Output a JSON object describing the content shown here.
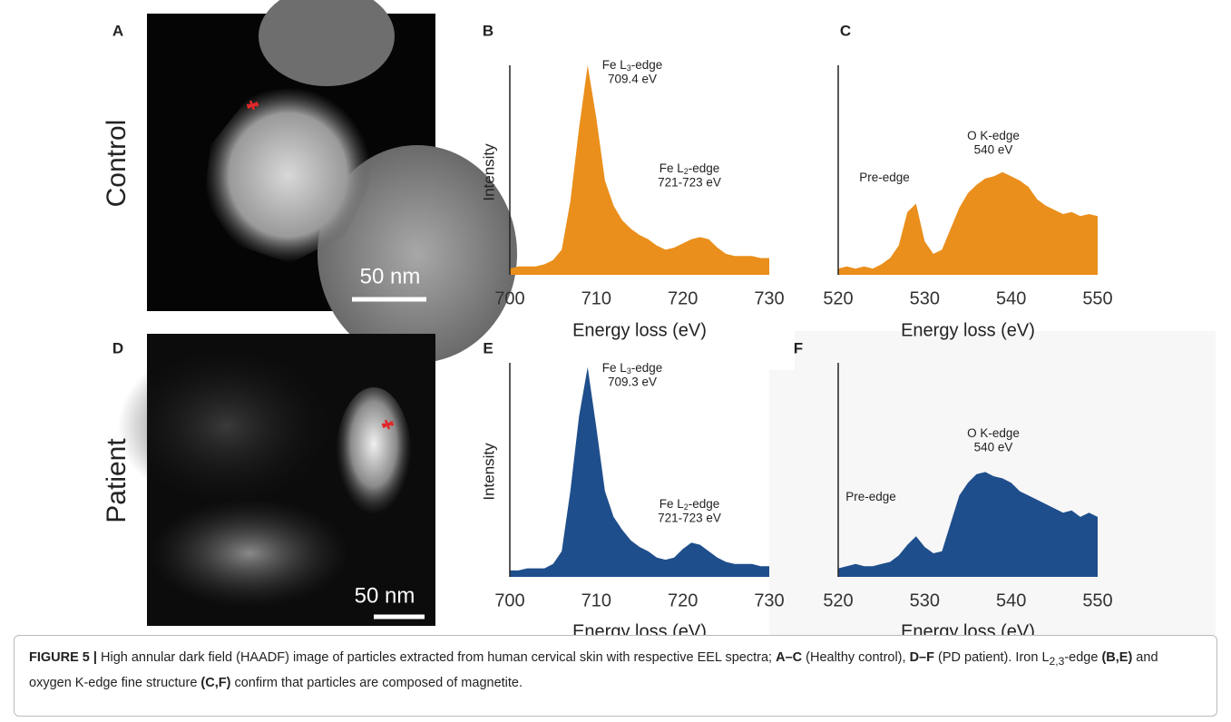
{
  "panel_labels": [
    "A",
    "B",
    "C",
    "D",
    "E",
    "F"
  ],
  "row_labels": [
    "Control",
    "Patient"
  ],
  "scale_bar": "50 nm",
  "chart_data": [
    {
      "type": "area",
      "color": "#ea8f1c",
      "x": [
        700,
        701,
        702,
        703,
        704,
        705,
        706,
        707,
        708,
        709,
        710,
        711,
        712,
        713,
        714,
        715,
        716,
        717,
        718,
        719,
        720,
        721,
        722,
        723,
        724,
        725,
        726,
        727,
        728,
        729,
        730
      ],
      "values": [
        3,
        4,
        4,
        4,
        5,
        7,
        12,
        35,
        70,
        100,
        75,
        45,
        33,
        26,
        22,
        19,
        17,
        14,
        12,
        13,
        15,
        17,
        18,
        17,
        13,
        10,
        9,
        9,
        9,
        8,
        8
      ],
      "xlim": [
        700,
        730
      ],
      "xticks": [
        700,
        710,
        720,
        730
      ],
      "ylim": [
        0,
        100
      ],
      "xlabel": "Energy loss (eV)",
      "ylabel": "Intensity",
      "annotations": [
        {
          "text": "Fe L",
          "sub": "3",
          "suffix": "-edge",
          "value": "709.4 eV"
        },
        {
          "text": "Fe L",
          "sub": "2",
          "suffix": "-edge",
          "value": "721-723 eV"
        }
      ]
    },
    {
      "type": "area",
      "color": "#ea8f1c",
      "x": [
        520,
        521,
        522,
        523,
        524,
        525,
        526,
        527,
        528,
        529,
        530,
        531,
        532,
        533,
        534,
        535,
        536,
        537,
        538,
        539,
        540,
        541,
        542,
        543,
        544,
        545,
        546,
        547,
        548,
        549,
        550
      ],
      "values": [
        3,
        4,
        3,
        4,
        3,
        5,
        8,
        14,
        30,
        34,
        16,
        10,
        12,
        22,
        32,
        39,
        43,
        46,
        47,
        49,
        47,
        45,
        42,
        36,
        33,
        31,
        29,
        30,
        28,
        29,
        28
      ],
      "xlim": [
        520,
        550
      ],
      "xticks": [
        520,
        530,
        540,
        550
      ],
      "ylim": [
        0,
        100
      ],
      "xlabel": "Energy loss (eV)",
      "annotations": [
        {
          "text": "O K-edge",
          "value": "540 eV"
        },
        {
          "text": "Pre-edge"
        }
      ]
    },
    {
      "type": "area",
      "color": "#1f4e8c",
      "x": [
        700,
        701,
        702,
        703,
        704,
        705,
        706,
        707,
        708,
        709,
        710,
        711,
        712,
        713,
        714,
        715,
        716,
        717,
        718,
        719,
        720,
        721,
        722,
        723,
        724,
        725,
        726,
        727,
        728,
        729,
        730
      ],
      "values": [
        3,
        3,
        4,
        4,
        4,
        6,
        12,
        40,
        75,
        98,
        70,
        40,
        28,
        22,
        17,
        14,
        12,
        9,
        8,
        9,
        13,
        16,
        15,
        12,
        9,
        7,
        6,
        6,
        6,
        5,
        5
      ],
      "xlim": [
        700,
        730
      ],
      "xticks": [
        700,
        710,
        720,
        730
      ],
      "ylim": [
        0,
        100
      ],
      "xlabel": "Energy loss (eV)",
      "ylabel": "Intensity",
      "annotations": [
        {
          "text": "Fe L",
          "sub": "3",
          "suffix": "-edge",
          "value": "709.3 eV"
        },
        {
          "text": "Fe L",
          "sub": "2",
          "suffix": "-edge",
          "value": "721-723 eV"
        }
      ]
    },
    {
      "type": "area",
      "color": "#1f4e8c",
      "x": [
        520,
        521,
        522,
        523,
        524,
        525,
        526,
        527,
        528,
        529,
        530,
        531,
        532,
        533,
        534,
        535,
        536,
        537,
        538,
        539,
        540,
        541,
        542,
        543,
        544,
        545,
        546,
        547,
        548,
        549,
        550
      ],
      "values": [
        4,
        5,
        6,
        5,
        5,
        6,
        7,
        10,
        15,
        19,
        14,
        11,
        12,
        25,
        38,
        44,
        48,
        49,
        47,
        46,
        44,
        40,
        38,
        36,
        34,
        32,
        30,
        31,
        28,
        30,
        28
      ],
      "xlim": [
        520,
        550
      ],
      "xticks": [
        520,
        530,
        540,
        550
      ],
      "ylim": [
        0,
        100
      ],
      "xlabel": "Energy loss (eV)",
      "annotations": [
        {
          "text": "O K-edge",
          "value": "540 eV"
        },
        {
          "text": "Pre-edge"
        }
      ]
    }
  ],
  "caption": [
    {
      "text": "FIGURE 5 |",
      "bold": true
    },
    {
      "text": " High annular dark field (HAADF) image of particles extracted from human cervical skin with respective EEL spectra; "
    },
    {
      "text": "A–C",
      "bold": true
    },
    {
      "text": " (Healthy control), "
    },
    {
      "text": "D–F",
      "bold": true
    },
    {
      "text": " (PD patient). Iron L"
    },
    {
      "text": "2,3",
      "sub": true
    },
    {
      "text": "-edge "
    },
    {
      "text": "(B,E)",
      "bold": true
    },
    {
      "text": " and oxygen K-edge fine structure "
    },
    {
      "text": "(C,F)",
      "bold": true
    },
    {
      "text": " confirm that particles are composed of magnetite."
    }
  ]
}
